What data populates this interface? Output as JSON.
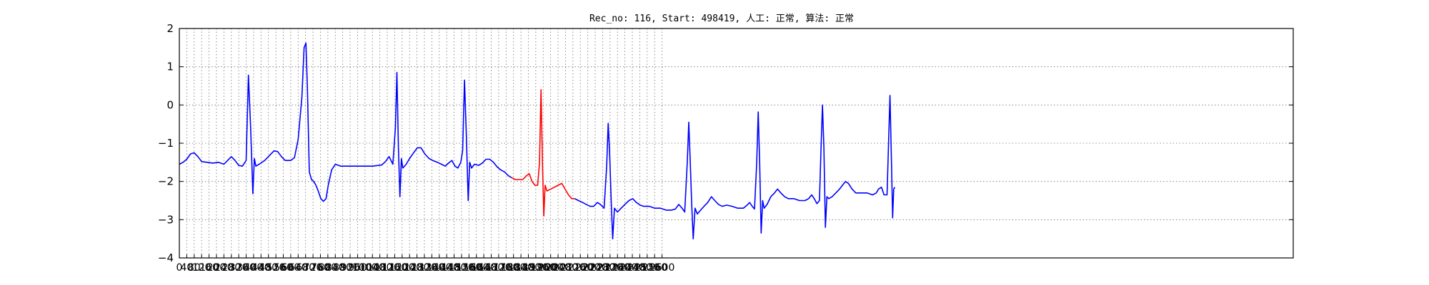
{
  "chart_data": {
    "type": "line",
    "title": "Rec_no: 116, Start: 498419, 人工: 正常, 算法: 正常",
    "xlabel": "",
    "ylabel": "",
    "xlim": [
      0,
      6000
    ],
    "ylim": [
      -4,
      2
    ],
    "grid": true,
    "yticks": [
      "−4",
      "−3",
      "−2",
      "−1",
      "0",
      "1",
      "2"
    ],
    "xticks": [
      "0",
      "40",
      "80",
      "120",
      "160",
      "200",
      "240",
      "280",
      "320",
      "360",
      "400",
      "440",
      "480",
      "520",
      "560",
      "600",
      "640",
      "680",
      "720",
      "760",
      "800",
      "840",
      "880",
      "920",
      "960",
      "1000",
      "1040",
      "1080",
      "1120",
      "1160",
      "1200",
      "1240",
      "1280",
      "1320",
      "1360",
      "1400",
      "1440",
      "1480",
      "1520",
      "1560",
      "1600",
      "1640",
      "1680",
      "1720",
      "1760",
      "1800",
      "1840",
      "1880",
      "1920",
      "1960",
      "2000",
      "2040",
      "2080",
      "2120",
      "2160",
      "2200",
      "2240",
      "2280",
      "2320",
      "2360",
      "2400",
      "2440",
      "2480",
      "2520",
      "2560",
      "2600"
    ],
    "series": [
      {
        "color": "#0000ff",
        "points": [
          [
            0,
            -1.55
          ],
          [
            20,
            -1.5
          ],
          [
            40,
            -1.42
          ],
          [
            60,
            -1.28
          ],
          [
            80,
            -1.25
          ],
          [
            100,
            -1.35
          ],
          [
            120,
            -1.48
          ],
          [
            150,
            -1.5
          ],
          [
            180,
            -1.52
          ],
          [
            210,
            -1.5
          ],
          [
            240,
            -1.55
          ],
          [
            260,
            -1.45
          ],
          [
            280,
            -1.35
          ],
          [
            300,
            -1.45
          ],
          [
            320,
            -1.58
          ],
          [
            340,
            -1.6
          ],
          [
            360,
            -1.45
          ],
          [
            372,
            0.78
          ],
          [
            384,
            -0.6
          ],
          [
            396,
            -2.32
          ],
          [
            404,
            -1.4
          ],
          [
            412,
            -1.6
          ],
          [
            430,
            -1.55
          ],
          [
            460,
            -1.45
          ],
          [
            490,
            -1.3
          ],
          [
            510,
            -1.2
          ],
          [
            530,
            -1.22
          ],
          [
            550,
            -1.35
          ],
          [
            570,
            -1.45
          ],
          [
            600,
            -1.45
          ],
          [
            620,
            -1.38
          ],
          [
            640,
            -0.9
          ],
          [
            660,
            0.2
          ],
          [
            672,
            1.5
          ],
          [
            682,
            1.62
          ],
          [
            690,
            0.4
          ],
          [
            700,
            -1.75
          ],
          [
            712,
            -1.95
          ],
          [
            724,
            -2.0
          ],
          [
            736,
            -2.1
          ],
          [
            748,
            -2.25
          ],
          [
            762,
            -2.45
          ],
          [
            776,
            -2.52
          ],
          [
            790,
            -2.45
          ],
          [
            802,
            -2.1
          ],
          [
            820,
            -1.7
          ],
          [
            840,
            -1.55
          ],
          [
            870,
            -1.6
          ],
          [
            920,
            -1.6
          ],
          [
            980,
            -1.6
          ],
          [
            1040,
            -1.6
          ],
          [
            1090,
            -1.57
          ],
          [
            1110,
            -1.48
          ],
          [
            1130,
            -1.35
          ],
          [
            1150,
            -1.55
          ],
          [
            1164,
            -0.6
          ],
          [
            1172,
            0.85
          ],
          [
            1180,
            -1.1
          ],
          [
            1188,
            -2.4
          ],
          [
            1196,
            -1.4
          ],
          [
            1204,
            -1.65
          ],
          [
            1222,
            -1.55
          ],
          [
            1240,
            -1.4
          ],
          [
            1262,
            -1.25
          ],
          [
            1282,
            -1.12
          ],
          [
            1302,
            -1.12
          ],
          [
            1322,
            -1.28
          ],
          [
            1345,
            -1.4
          ],
          [
            1365,
            -1.45
          ],
          [
            1390,
            -1.5
          ],
          [
            1412,
            -1.55
          ],
          [
            1432,
            -1.6
          ],
          [
            1450,
            -1.52
          ],
          [
            1468,
            -1.45
          ],
          [
            1485,
            -1.6
          ],
          [
            1500,
            -1.65
          ],
          [
            1516,
            -1.5
          ],
          [
            1526,
            -1.2
          ],
          [
            1536,
            0.65
          ],
          [
            1546,
            -0.8
          ],
          [
            1556,
            -2.5
          ],
          [
            1564,
            -1.5
          ],
          [
            1574,
            -1.65
          ],
          [
            1590,
            -1.55
          ],
          [
            1612,
            -1.58
          ],
          [
            1632,
            -1.52
          ],
          [
            1652,
            -1.42
          ],
          [
            1672,
            -1.42
          ],
          [
            1692,
            -1.5
          ],
          [
            1712,
            -1.62
          ],
          [
            1732,
            -1.7
          ],
          [
            1752,
            -1.75
          ],
          [
            1772,
            -1.85
          ],
          [
            1790,
            -1.9
          ]
        ]
      },
      {
        "color": "#ff0000",
        "points": [
          [
            1790,
            -1.9
          ],
          [
            1810,
            -1.95
          ],
          [
            1830,
            -1.95
          ],
          [
            1850,
            -1.95
          ],
          [
            1870,
            -1.85
          ],
          [
            1885,
            -1.8
          ],
          [
            1900,
            -2.0
          ],
          [
            1915,
            -2.1
          ],
          [
            1930,
            -2.1
          ],
          [
            1940,
            -1.5
          ],
          [
            1948,
            0.4
          ],
          [
            1956,
            -1.5
          ],
          [
            1963,
            -2.9
          ],
          [
            1970,
            -2.1
          ],
          [
            1980,
            -2.25
          ],
          [
            2000,
            -2.2
          ],
          [
            2020,
            -2.15
          ],
          [
            2040,
            -2.1
          ],
          [
            2060,
            -2.05
          ],
          [
            2078,
            -2.2
          ],
          [
            2096,
            -2.35
          ],
          [
            2114,
            -2.45
          ],
          [
            2130,
            -2.45
          ]
        ]
      },
      {
        "color": "#0000ff",
        "points": [
          [
            2130,
            -2.45
          ],
          [
            2150,
            -2.5
          ],
          [
            2172,
            -2.55
          ],
          [
            2192,
            -2.6
          ],
          [
            2212,
            -2.65
          ],
          [
            2232,
            -2.65
          ],
          [
            2252,
            -2.55
          ],
          [
            2268,
            -2.6
          ],
          [
            2288,
            -2.7
          ],
          [
            2302,
            -1.6
          ],
          [
            2310,
            -0.48
          ],
          [
            2318,
            -1.3
          ],
          [
            2326,
            -2.5
          ],
          [
            2334,
            -3.5
          ],
          [
            2344,
            -2.7
          ],
          [
            2360,
            -2.8
          ],
          [
            2380,
            -2.7
          ],
          [
            2400,
            -2.6
          ],
          [
            2422,
            -2.5
          ],
          [
            2442,
            -2.45
          ],
          [
            2462,
            -2.55
          ],
          [
            2482,
            -2.62
          ],
          [
            2502,
            -2.65
          ],
          [
            2532,
            -2.65
          ],
          [
            2562,
            -2.7
          ],
          [
            2592,
            -2.7
          ],
          [
            2622,
            -2.75
          ],
          [
            2652,
            -2.75
          ],
          [
            2672,
            -2.72
          ],
          [
            2690,
            -2.6
          ],
          [
            2708,
            -2.7
          ],
          [
            2722,
            -2.8
          ],
          [
            2736,
            -1.5
          ],
          [
            2744,
            -0.45
          ],
          [
            2752,
            -1.5
          ],
          [
            2760,
            -2.6
          ],
          [
            2768,
            -3.5
          ],
          [
            2778,
            -2.7
          ],
          [
            2790,
            -2.85
          ],
          [
            2808,
            -2.75
          ],
          [
            2826,
            -2.65
          ],
          [
            2846,
            -2.55
          ],
          [
            2866,
            -2.4
          ],
          [
            2884,
            -2.5
          ],
          [
            2904,
            -2.6
          ],
          [
            2924,
            -2.65
          ],
          [
            2948,
            -2.62
          ],
          [
            2978,
            -2.65
          ],
          [
            3008,
            -2.7
          ],
          [
            3038,
            -2.7
          ],
          [
            3058,
            -2.62
          ],
          [
            3072,
            -2.55
          ],
          [
            3086,
            -2.65
          ],
          [
            3098,
            -2.72
          ],
          [
            3110,
            -1.5
          ],
          [
            3118,
            -0.18
          ],
          [
            3126,
            -1.5
          ],
          [
            3134,
            -3.35
          ],
          [
            3142,
            -2.5
          ],
          [
            3150,
            -2.7
          ],
          [
            3166,
            -2.6
          ],
          [
            3186,
            -2.4
          ],
          [
            3206,
            -2.3
          ],
          [
            3222,
            -2.2
          ],
          [
            3240,
            -2.3
          ],
          [
            3260,
            -2.4
          ],
          [
            3280,
            -2.45
          ],
          [
            3310,
            -2.45
          ],
          [
            3340,
            -2.5
          ],
          [
            3370,
            -2.5
          ],
          [
            3390,
            -2.45
          ],
          [
            3406,
            -2.35
          ],
          [
            3420,
            -2.45
          ],
          [
            3434,
            -2.58
          ],
          [
            3448,
            -2.5
          ],
          [
            3456,
            -1.2
          ],
          [
            3464,
            0.0
          ],
          [
            3472,
            -1.1
          ],
          [
            3480,
            -3.2
          ],
          [
            3488,
            -2.4
          ],
          [
            3498,
            -2.45
          ],
          [
            3516,
            -2.4
          ],
          [
            3536,
            -2.3
          ],
          [
            3556,
            -2.2
          ],
          [
            3572,
            -2.1
          ],
          [
            3588,
            -2.0
          ],
          [
            3604,
            -2.05
          ],
          [
            3624,
            -2.2
          ],
          [
            3644,
            -2.3
          ],
          [
            3674,
            -2.3
          ],
          [
            3704,
            -2.3
          ],
          [
            3734,
            -2.35
          ],
          [
            3754,
            -2.3
          ],
          [
            3766,
            -2.2
          ],
          [
            3782,
            -2.15
          ],
          [
            3796,
            -2.35
          ],
          [
            3812,
            -2.35
          ],
          [
            3820,
            -1.0
          ],
          [
            3828,
            0.25
          ],
          [
            3836,
            -1.5
          ],
          [
            3842,
            -2.95
          ],
          [
            3848,
            -2.2
          ],
          [
            3854,
            -2.15
          ]
        ]
      }
    ]
  }
}
